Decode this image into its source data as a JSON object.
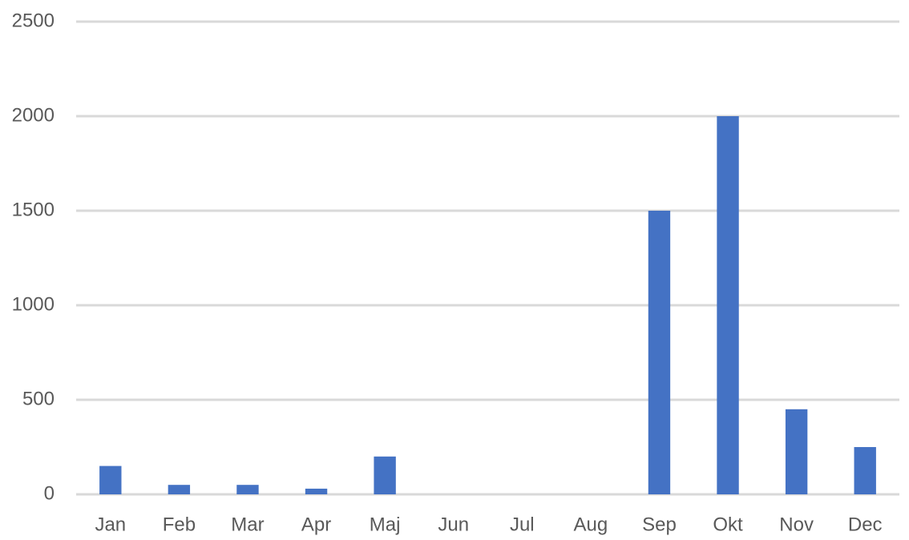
{
  "chart_data": {
    "type": "bar",
    "categories": [
      "Jan",
      "Feb",
      "Mar",
      "Apr",
      "Maj",
      "Jun",
      "Jul",
      "Aug",
      "Sep",
      "Okt",
      "Nov",
      "Dec"
    ],
    "values": [
      150,
      50,
      50,
      30,
      200,
      0,
      0,
      0,
      1500,
      2000,
      450,
      250
    ],
    "color": "#4472c4",
    "ylim": [
      0,
      2500
    ],
    "yticks": [
      0,
      500,
      1000,
      1500,
      2000,
      2500
    ],
    "grid": true
  }
}
